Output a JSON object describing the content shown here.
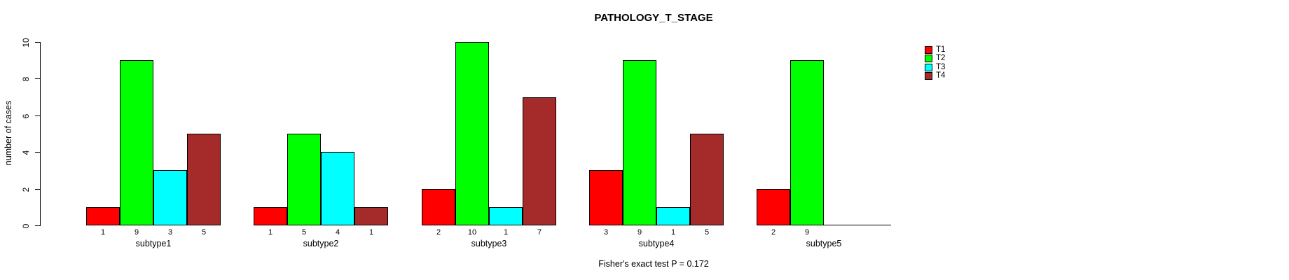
{
  "chart_data": {
    "type": "bar",
    "title": "PATHOLOGY_T_STAGE",
    "xlabel": "",
    "ylabel": "number of cases",
    "ylim": [
      0,
      10
    ],
    "yticks": [
      0,
      2,
      4,
      6,
      8,
      10
    ],
    "grid": false,
    "legend_position": "right",
    "annotation": "Fisher's exact test P = 0.172",
    "categories": [
      "subtype1",
      "subtype2",
      "subtype3",
      "subtype4",
      "subtype5"
    ],
    "series": [
      {
        "name": "T1",
        "color": "#FF0000",
        "values": [
          1,
          1,
          2,
          3,
          2
        ]
      },
      {
        "name": "T2",
        "color": "#00FF00",
        "values": [
          9,
          5,
          10,
          9,
          9
        ]
      },
      {
        "name": "T3",
        "color": "#00FFFF",
        "values": [
          3,
          4,
          1,
          1,
          0
        ]
      },
      {
        "name": "T4",
        "color": "#A52A2A",
        "values": [
          5,
          1,
          7,
          5,
          0
        ]
      }
    ],
    "bar_value_labels": {
      "subtype1": [
        1,
        9,
        3,
        5
      ],
      "subtype2": [
        1,
        5,
        4,
        1
      ],
      "subtype3": [
        2,
        10,
        1,
        7
      ],
      "subtype4": [
        3,
        9,
        1,
        5
      ],
      "subtype5": [
        2,
        9,
        null,
        null
      ]
    }
  },
  "colors": {
    "T1": "#FF0000",
    "T2": "#00FF00",
    "T3": "#00FFFF",
    "T4": "#A52A2A",
    "axis": "#000000",
    "background": "#FFFFFF"
  }
}
